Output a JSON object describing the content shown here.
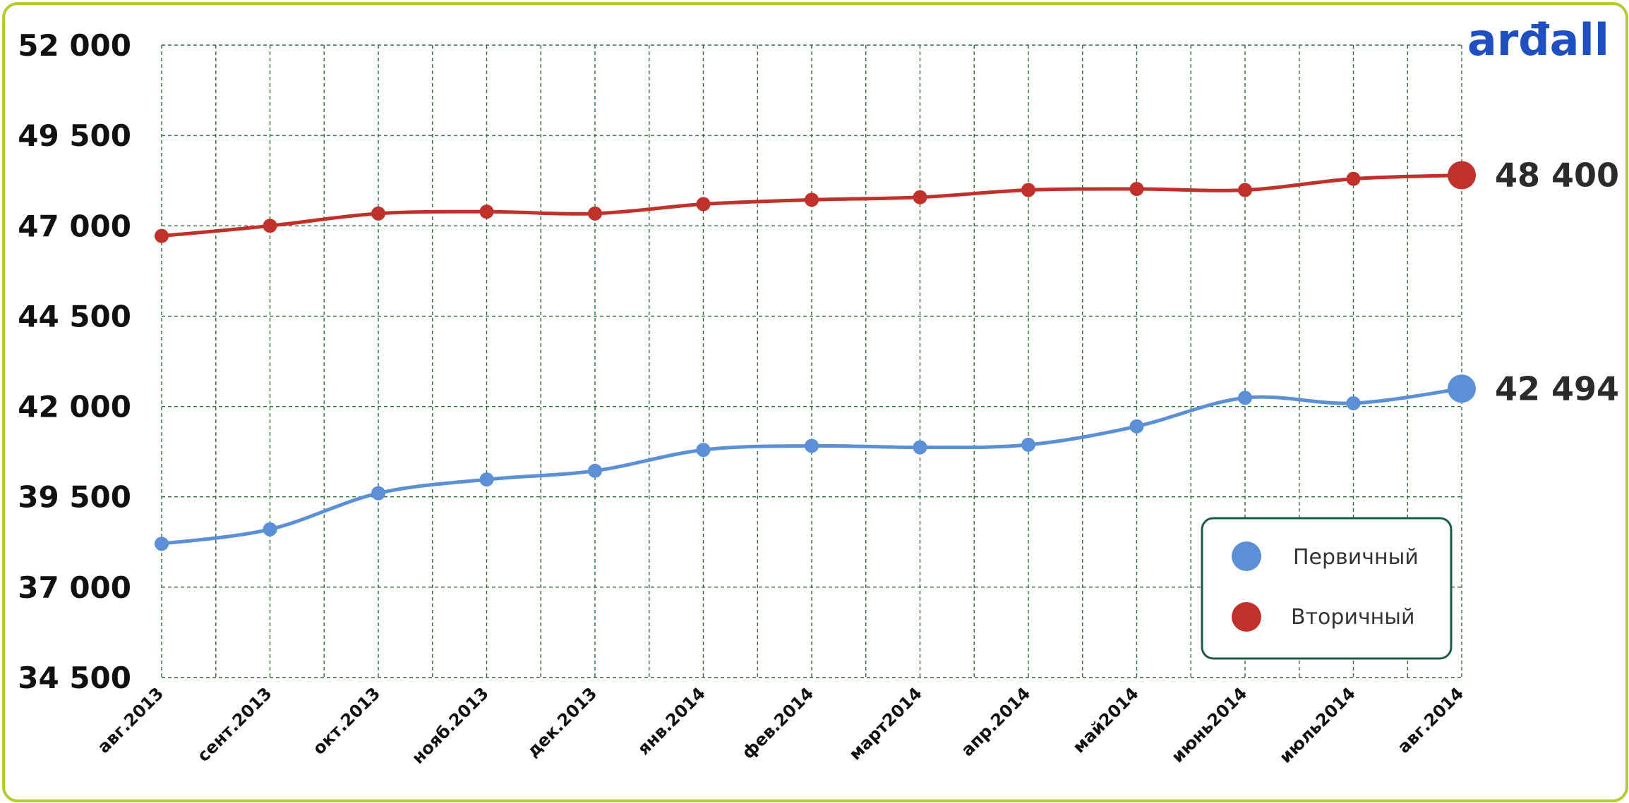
{
  "logo": {
    "text": "arđall"
  },
  "chart_data": {
    "type": "line",
    "categories": [
      "авг.2013",
      "сент.2013",
      "окт.2013",
      "нояб.2013",
      "дек.2013",
      "янв.2014",
      "фев.2014",
      "март2014",
      "апр.2014",
      "май2014",
      "июнь2014",
      "июль2014",
      "авг.2014"
    ],
    "ylim": [
      34500,
      52000
    ],
    "yticks": [
      34500,
      37000,
      39500,
      42000,
      44500,
      47000,
      49500,
      52000
    ],
    "ytick_labels": [
      "34 500",
      "37 000",
      "39 500",
      "42 000",
      "44 500",
      "47 000",
      "49 500",
      "52 000"
    ],
    "grid": true,
    "legend_position": "bottom-right",
    "series": [
      {
        "name": "Первичный",
        "color": "#5b8fd6",
        "values": [
          38200,
          38600,
          39600,
          39980,
          40220,
          40800,
          40910,
          40870,
          40940,
          41450,
          42240,
          42090,
          42494
        ],
        "end_label": "42 494"
      },
      {
        "name": "Вторичный",
        "color": "#c0312b",
        "values": [
          46720,
          47000,
          47340,
          47390,
          47340,
          47600,
          47720,
          47790,
          47990,
          48020,
          47990,
          48300,
          48400
        ],
        "end_label": "48 400"
      }
    ]
  }
}
